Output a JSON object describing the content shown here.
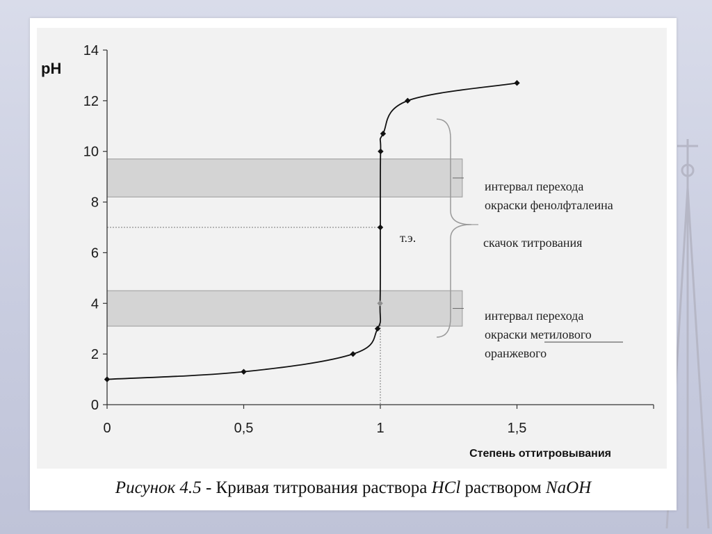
{
  "caption": {
    "label": "Рисунок 4.5",
    "sep": " - ",
    "text_before": "Кривая титрования раствора ",
    "acid": "HCl",
    "text_middle": " раствором ",
    "base": "NaOH"
  },
  "chart_data": {
    "type": "scatter",
    "xlabel": "Степень оттитровывания",
    "ylabel": "pH",
    "xlim": [
      0,
      2
    ],
    "ylim": [
      0,
      14
    ],
    "x_ticks": [
      "0",
      "0,5",
      "1",
      "1,5"
    ],
    "y_ticks": [
      "0",
      "2",
      "4",
      "6",
      "8",
      "10",
      "12",
      "14"
    ],
    "grid": false,
    "series": [
      {
        "x": [
          0,
          0.5,
          0.9,
          0.99,
          0.999,
          1.0,
          1.001,
          1.01,
          1.1,
          1.5
        ],
        "y": [
          1.0,
          1.3,
          2.0,
          3.0,
          4.0,
          7.0,
          10.0,
          10.7,
          12.0,
          12.7
        ]
      }
    ],
    "equivalence_point": {
      "x": 1.0,
      "y": 7.0,
      "label": "т.э."
    },
    "bands": [
      {
        "y": [
          8.2,
          9.7
        ],
        "label_lines": [
          "интервал перехода",
          "окраски фенолфталеина"
        ]
      },
      {
        "y": [
          3.1,
          4.5
        ],
        "label_lines": [
          "интервал перехода",
          "окраски метилового",
          "оранжевого"
        ]
      }
    ],
    "jump_label": "скачок титрования",
    "colors": {
      "curve": "#111111",
      "band": "#d4d4d4",
      "band_edge": "#9a9a9a",
      "marker_faded": "#8f8f8f"
    }
  }
}
